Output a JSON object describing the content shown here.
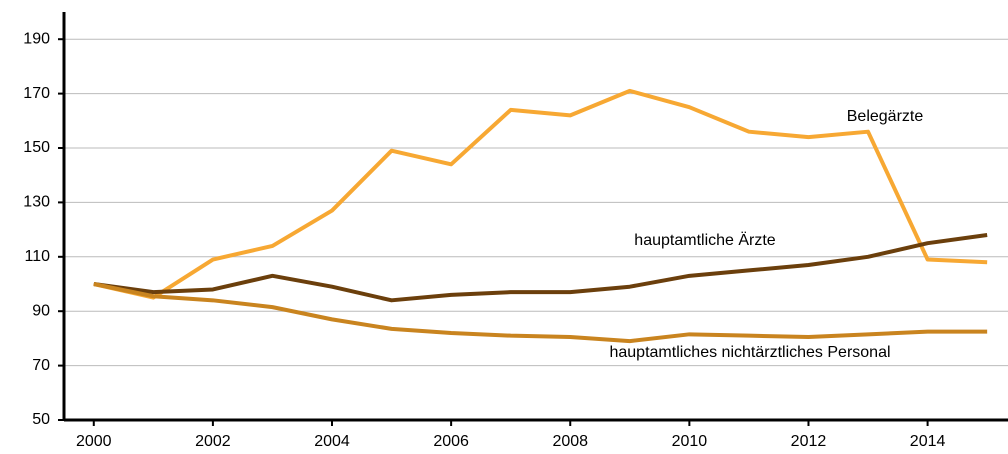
{
  "chart_data": {
    "type": "line",
    "x": [
      2000,
      2001,
      2002,
      2003,
      2004,
      2005,
      2006,
      2007,
      2008,
      2009,
      2010,
      2011,
      2012,
      2013,
      2014,
      2015
    ],
    "series": [
      {
        "name": "Belegärzte",
        "color": "#f7a833",
        "values": [
          100,
          95,
          109,
          114,
          127,
          149,
          144,
          164,
          162,
          171,
          165,
          156,
          154,
          156,
          109,
          108
        ]
      },
      {
        "name": "hauptamtliche Ärzte",
        "color": "#6b3f0c",
        "values": [
          100,
          97,
          98,
          103,
          99,
          94,
          96,
          97,
          97,
          99,
          103,
          105,
          107,
          110,
          115,
          118
        ]
      },
      {
        "name": "hauptamtliches nichtärztliches Personal",
        "color": "#c9841f",
        "values": [
          100,
          95.5,
          94,
          91.5,
          87,
          83.5,
          82,
          81,
          80.5,
          79,
          81.5,
          81,
          80.5,
          81.5,
          82.5,
          82.5
        ]
      }
    ],
    "xlim": [
      1999.5,
      2015.35
    ],
    "xticks": [
      2000,
      2002,
      2004,
      2006,
      2008,
      2010,
      2012,
      2014
    ],
    "ylim": [
      50,
      200
    ],
    "yticks": [
      50,
      70,
      90,
      110,
      130,
      150,
      170,
      190
    ],
    "grid": true
  }
}
